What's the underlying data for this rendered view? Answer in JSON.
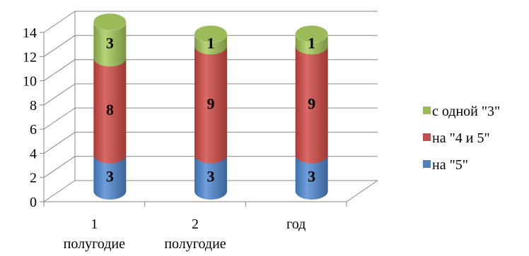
{
  "chart_data": {
    "type": "bar",
    "stacked": true,
    "style": "3d-cylinder",
    "categories": [
      [
        "1",
        "полугодие"
      ],
      [
        "2",
        "полугодие"
      ],
      [
        "год"
      ]
    ],
    "series": [
      {
        "name": "на \"5\"",
        "values": [
          3,
          3,
          3
        ],
        "color": "#4f81bd"
      },
      {
        "name": "на \"4 и 5\"",
        "values": [
          8,
          9,
          9
        ],
        "color": "#c0504d"
      },
      {
        "name": "с одной \"3\"",
        "values": [
          3,
          1,
          1
        ],
        "color": "#9bbb59"
      }
    ],
    "ylim": [
      0,
      14
    ],
    "yticks": [
      0,
      2,
      4,
      6,
      8,
      10,
      12,
      14
    ],
    "grid": true,
    "legend_position": "right",
    "data_labels": true,
    "title": "",
    "xlabel": "",
    "ylabel": ""
  }
}
